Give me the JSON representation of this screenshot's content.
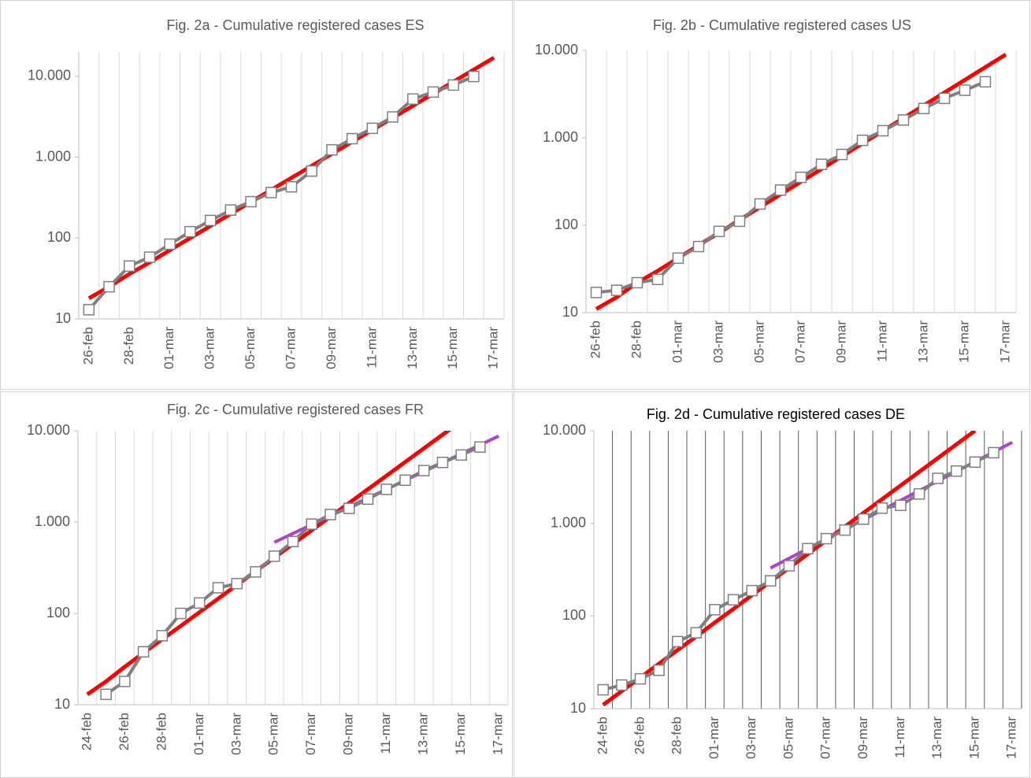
{
  "chart_data": [
    {
      "type": "line",
      "title": "Fig. 2a - Cumulative registered cases ES",
      "log_scale": true,
      "grid": "x",
      "grid_color": "#d9d9d9",
      "categories": [
        "26-feb",
        null,
        "28-feb",
        null,
        "01-mar",
        null,
        "03-mar",
        null,
        "05-mar",
        null,
        "07-mar",
        null,
        "09-mar",
        null,
        "11-mar",
        null,
        "13-mar",
        null,
        "15-mar",
        null,
        "17-mar"
      ],
      "ylim": [
        10,
        20000
      ],
      "yticks": [
        10,
        100,
        {
          "value": 1000,
          "label": "1.000"
        },
        {
          "value": 10000,
          "label": "10.000"
        }
      ],
      "series": [
        {
          "color": "#ff0000",
          "width": 5,
          "values": [
            18,
            25,
            36,
            50,
            71,
            100,
            141,
            199,
            280,
            394,
            555,
            781,
            1100,
            1549,
            2181,
            3071,
            4324,
            6088,
            8572,
            12070,
            16994
          ]
        },
        {
          "color": "#7f7f7f",
          "width": 4,
          "marker": "square",
          "values": [
            13,
            25,
            45,
            58,
            84,
            120,
            165,
            222,
            282,
            365,
            430,
            674,
            1231,
            1695,
            2277,
            3146,
            5232,
            6391,
            7798,
            9942,
            null
          ]
        }
      ]
    },
    {
      "type": "line",
      "title": "Fig. 2b - Cumulative registered cases US",
      "log_scale": true,
      "grid": "x",
      "grid_color": "#d9d9d9",
      "categories": [
        "26-feb",
        null,
        "28-feb",
        null,
        "01-mar",
        null,
        "03-mar",
        null,
        "05-mar",
        null,
        "07-mar",
        null,
        "09-mar",
        null,
        "11-mar",
        null,
        "13-mar",
        null,
        "15-mar",
        null,
        "17-mar"
      ],
      "ylim": [
        10,
        10000
      ],
      "yticks": [
        10,
        100,
        {
          "value": 1000,
          "label": "1.000"
        },
        {
          "value": 10000,
          "label": "10.000"
        }
      ],
      "series": [
        {
          "color": "#ff0000",
          "width": 5,
          "values": [
            11,
            15,
            22,
            30,
            42,
            59,
            82,
            115,
            161,
            225,
            315,
            440,
            615,
            860,
            1202,
            1681,
            2350,
            3285,
            4592,
            6420,
            8975
          ]
        },
        {
          "color": "#7f7f7f",
          "width": 4,
          "marker": "square",
          "values": [
            17,
            18,
            22,
            24,
            42,
            57,
            85,
            111,
            175,
            252,
            353,
            497,
            645,
            936,
            1205,
            1598,
            2163,
            2826,
            3503,
            4373,
            null
          ]
        }
      ]
    },
    {
      "type": "line",
      "title": "Fig. 2c - Cumulative registered cases FR",
      "log_scale": true,
      "grid": "x",
      "grid_color": "#d9d9d9",
      "categories": [
        "24-feb",
        null,
        "26-feb",
        null,
        "28-feb",
        null,
        "01-mar",
        null,
        "03-mar",
        null,
        "05-mar",
        null,
        "07-mar",
        null,
        "09-mar",
        null,
        "11-mar",
        null,
        "13-mar",
        null,
        "15-mar",
        null,
        "17-mar"
      ],
      "ylim": [
        10,
        10000
      ],
      "yticks": [
        10,
        100,
        {
          "value": 1000,
          "label": "1.000"
        },
        {
          "value": 10000,
          "label": "10.000"
        }
      ],
      "series": [
        {
          "color": "#ff0000",
          "width": 5,
          "values": [
            13,
            18,
            26,
            37,
            52,
            73,
            103,
            145,
            205,
            289,
            408,
            576,
            812,
            1146,
            1617,
            2282,
            3220,
            4543,
            6411,
            9045,
            12760,
            null,
            null
          ]
        },
        {
          "color": "#b040d0",
          "width": 4,
          "values": [
            null,
            null,
            null,
            null,
            null,
            null,
            null,
            null,
            null,
            null,
            600,
            750,
            937,
            1171,
            1464,
            1830,
            2287,
            2859,
            3574,
            4467,
            5584,
            6980,
            8725
          ]
        },
        {
          "color": "#7f7f7f",
          "width": 4,
          "marker": "square",
          "values": [
            null,
            13,
            18,
            38,
            57,
            100,
            130,
            191,
            212,
            285,
            423,
            613,
            949,
            1209,
            1412,
            1784,
            2281,
            2876,
            3661,
            4499,
            5423,
            6633,
            null
          ]
        }
      ]
    },
    {
      "type": "line",
      "title": "Fig. 2d - Cumulative registered cases DE",
      "log_scale": true,
      "grid": "x",
      "grid_color": "#595959",
      "categories": [
        "24-feb",
        null,
        "26-feb",
        null,
        "28-feb",
        null,
        "01-mar",
        null,
        "03-mar",
        null,
        "05-mar",
        null,
        "07-mar",
        null,
        "09-mar",
        null,
        "11-mar",
        null,
        "13-mar",
        null,
        "15-mar",
        null,
        "17-mar"
      ],
      "ylim": [
        10,
        10000
      ],
      "yticks": [
        10,
        100,
        {
          "value": 1000,
          "label": "1.000"
        },
        {
          "value": 10000,
          "label": "10.000"
        }
      ],
      "series": [
        {
          "color": "#ff0000",
          "width": 5,
          "values": [
            11,
            15.5,
            21.7,
            30.6,
            43,
            60,
            85,
            119,
            168,
            236,
            332,
            467,
            656,
            923,
            1297,
            1824,
            2565,
            3606,
            5070,
            7128,
            10022,
            null,
            null
          ]
        },
        {
          "color": "#b040d0",
          "width": 4,
          "values": [
            null,
            null,
            null,
            null,
            null,
            null,
            null,
            null,
            null,
            330,
            420,
            534,
            679,
            863,
            1097,
            1395,
            1773,
            2255,
            2867,
            3645,
            4634,
            5892,
            7491
          ]
        },
        {
          "color": "#7f7f7f",
          "width": 4,
          "marker": "square",
          "values": [
            16,
            18,
            21,
            26,
            53,
            66,
            117,
            150,
            188,
            240,
            349,
            534,
            684,
            847,
            1112,
            1460,
            1567,
            2078,
            3062,
            3671,
            4585,
            5795,
            null
          ]
        }
      ]
    }
  ]
}
